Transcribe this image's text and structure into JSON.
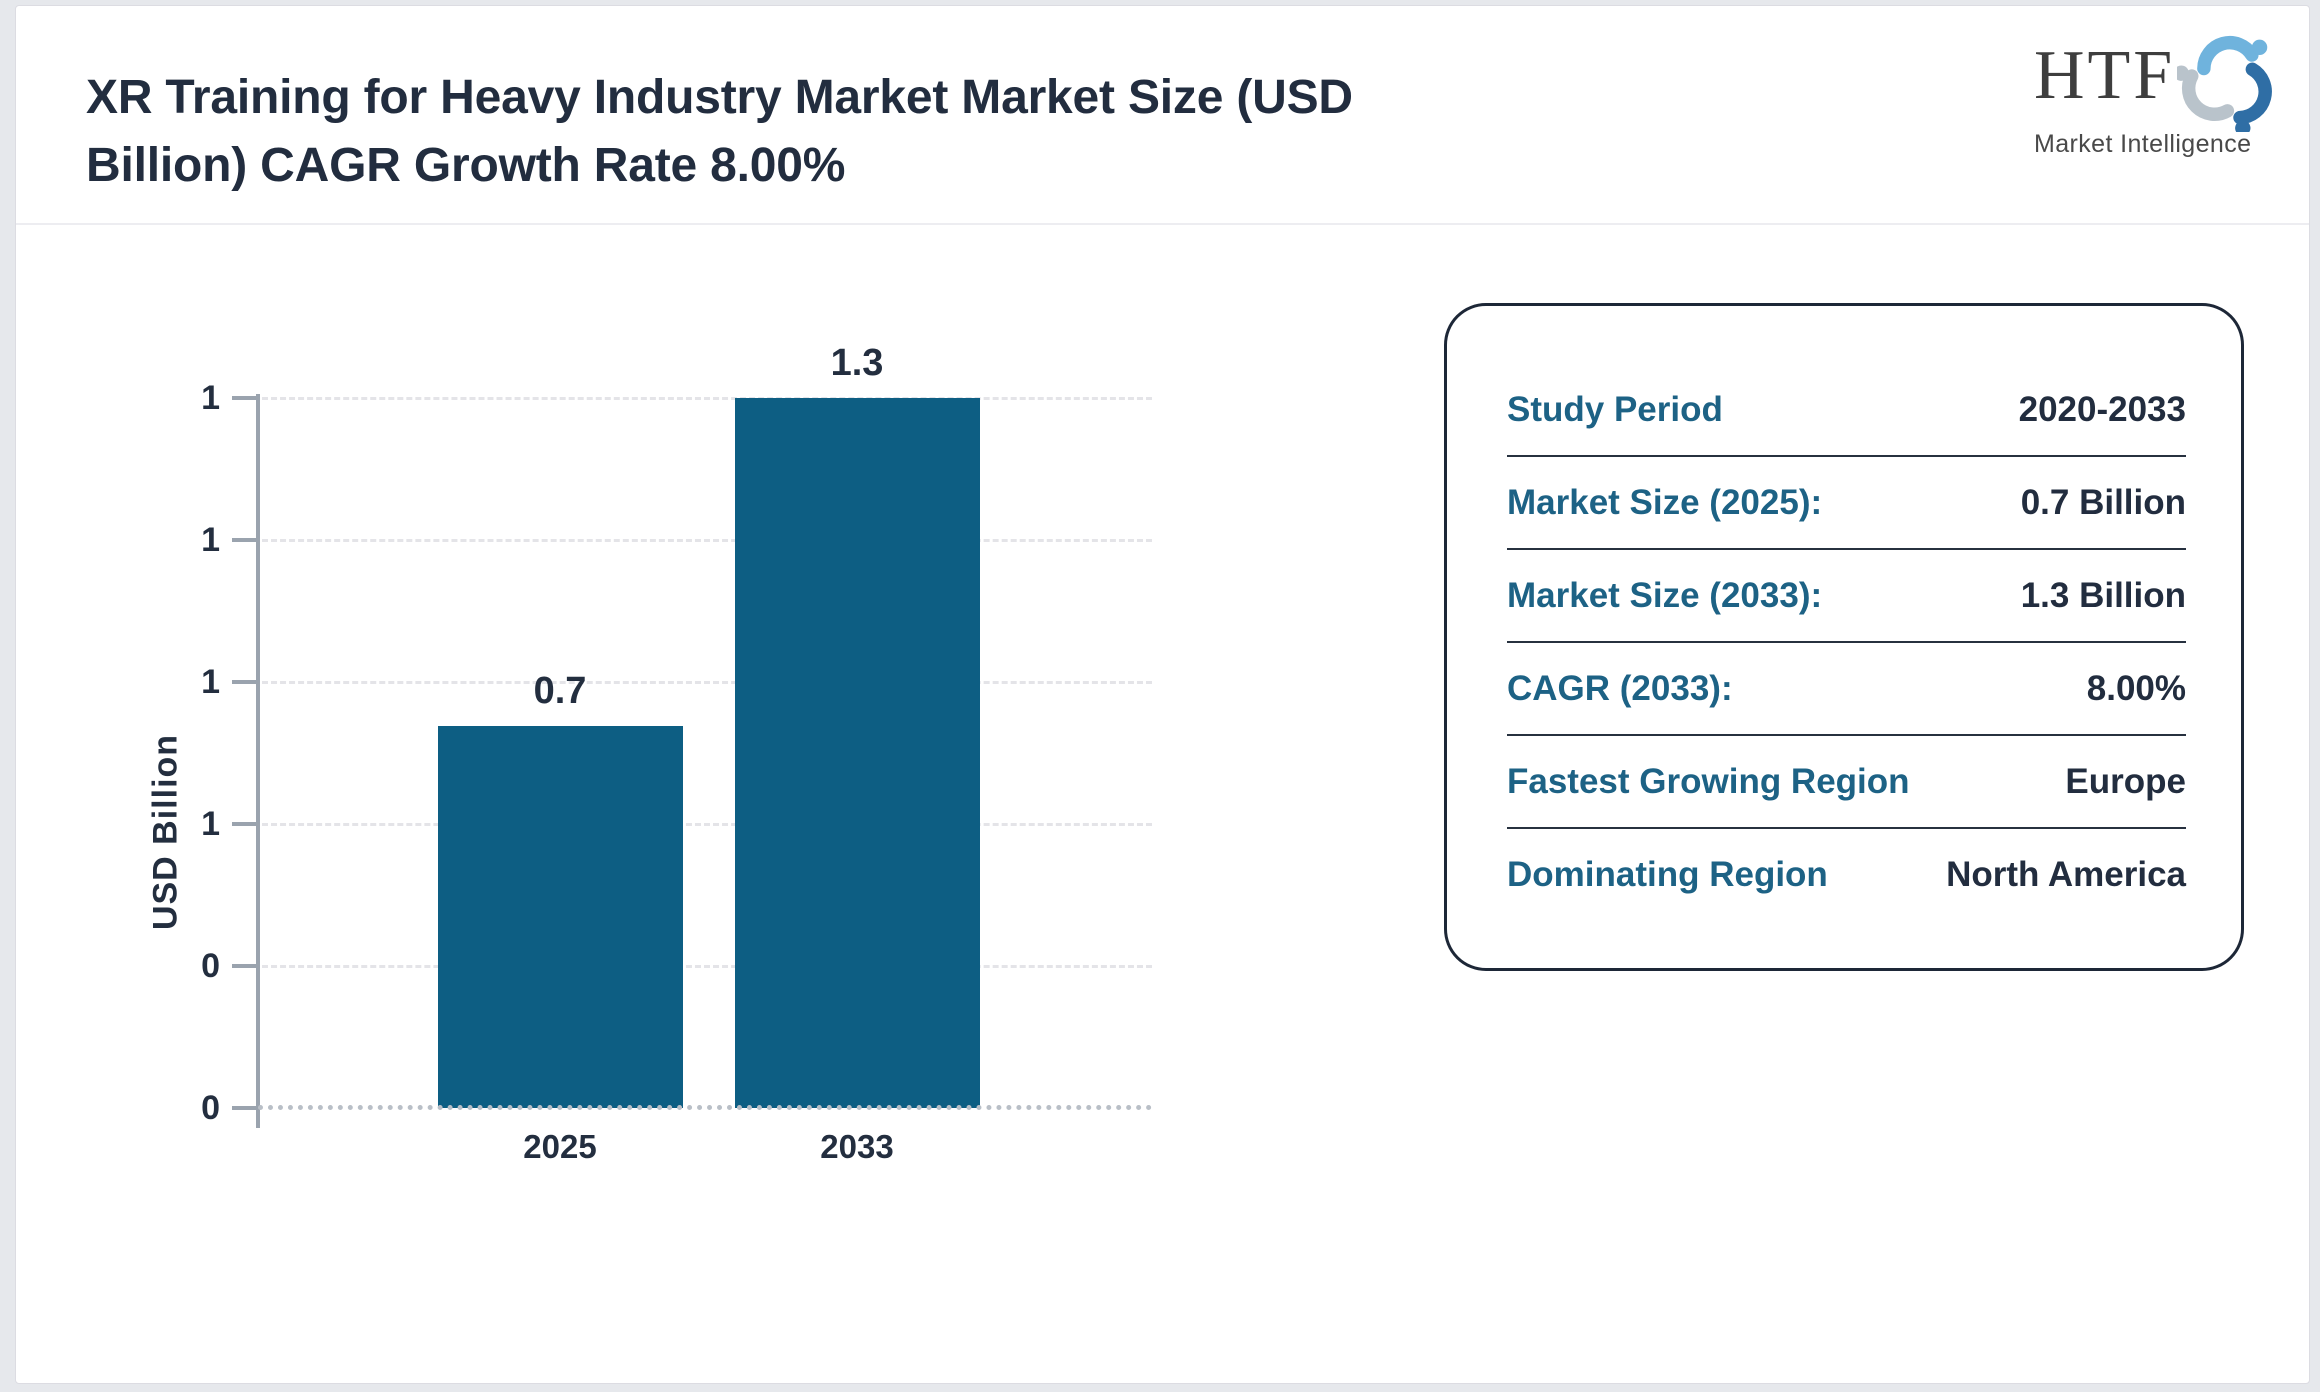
{
  "header": {
    "title": "XR Training for Heavy Industry Market Market Size (USD Billion) CAGR Growth Rate 8.00%"
  },
  "logo": {
    "acronym": "HTF",
    "subtitle": "Market Intelligence",
    "colors": {
      "light_blue": "#6fb3dd",
      "dark_blue": "#2f6ea5",
      "gray": "#b9c3cb"
    }
  },
  "chart_data": {
    "type": "bar",
    "title": "XR Training for Heavy Industry Market - Market Size (USD Billion)",
    "categories": [
      "2025",
      "2033"
    ],
    "values": [
      0.7,
      1.3
    ],
    "bar_labels": [
      "0.7",
      "1.3"
    ],
    "xlabel": "",
    "ylabel": "USD Billion",
    "ylim": [
      0,
      1.3
    ],
    "ytick_labels_top_to_bottom": [
      "1",
      "1",
      "1",
      "1",
      "0",
      "0"
    ],
    "grid": "horizontal dashed",
    "legend": "none",
    "bar_color": "#0d5e83"
  },
  "panel": {
    "rows": [
      {
        "label": "Study Period",
        "value": "2020-2033"
      },
      {
        "label": "Market Size (2025):",
        "value": "0.7 Billion"
      },
      {
        "label": "Market Size (2033):",
        "value": "1.3 Billion"
      },
      {
        "label": "CAGR (2033):",
        "value": "8.00%"
      },
      {
        "label": "Fastest Growing Region",
        "value": "Europe"
      },
      {
        "label": "Dominating Region",
        "value": "North America"
      }
    ]
  },
  "colors": {
    "bar": "#0d5e83",
    "panel_label": "#1d6285",
    "text_navy": "#222d3f",
    "axis_gray": "#9aa3ae",
    "page_background": "#e6e8ec"
  }
}
